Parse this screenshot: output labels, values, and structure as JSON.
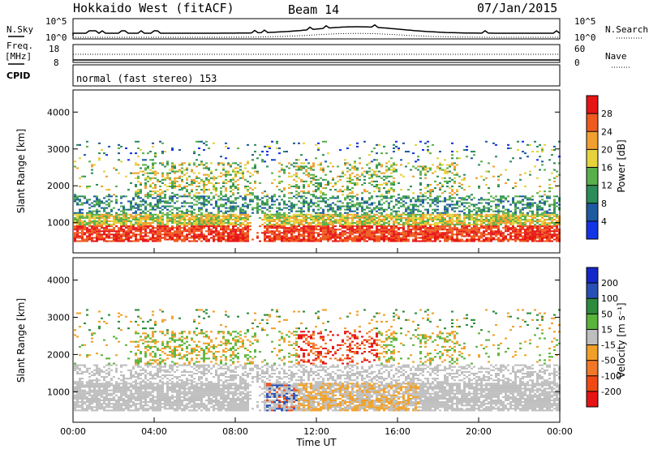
{
  "header": {
    "title": "Hokkaido West (fitACF)",
    "beam": "Beam 14",
    "date": "07/Jan/2015"
  },
  "top_panels": {
    "nsky_label": "N.Sky",
    "nsearch_label": "N.Search",
    "freq_label_1": "Freq.",
    "freq_label_2": "[MHz]",
    "nave_label": "Nave",
    "cpid_label": "CPID",
    "cpid_text": "normal (fast stereo) 153",
    "noise_left_ticks": [
      "10^5",
      "10^0"
    ],
    "noise_right_ticks": [
      "10^5",
      "10^0"
    ],
    "freq_ticks": [
      "18",
      "8"
    ],
    "nave_ticks": [
      "60",
      "0"
    ]
  },
  "chart_data": [
    {
      "type": "heatmap",
      "name": "Power",
      "ylabel": "Slant Range [km]",
      "xlabel": "",
      "y_ticks": [
        "1000",
        "2000",
        "3000",
        "4000"
      ],
      "x_ticks": [],
      "ylim": [
        180,
        4600
      ],
      "xlim_hours": [
        0,
        24
      ],
      "colorbar": {
        "label": "Power [dB]",
        "ticks": [
          "4",
          "8",
          "12",
          "16",
          "20",
          "24",
          "28"
        ],
        "colors": [
          "#1434e6",
          "#1e5aa0",
          "#2c8c5a",
          "#58b04a",
          "#e6d23c",
          "#f0a030",
          "#ef5a1e",
          "#e61414"
        ]
      },
      "regions_description": "echo bands: ground scatter 600-1200 km all day; ionospheric echoes 1200-3000 km"
    },
    {
      "type": "heatmap",
      "name": "Velocity",
      "ylabel": "Slant Range [km]",
      "xlabel": "Time UT",
      "y_ticks": [
        "1000",
        "2000",
        "3000",
        "4000"
      ],
      "x_ticks": [
        "00:00",
        "04:00",
        "08:00",
        "12:00",
        "16:00",
        "20:00",
        "00:00"
      ],
      "ylim": [
        180,
        4600
      ],
      "xlim_hours": [
        0,
        24
      ],
      "colorbar": {
        "label": "Velocity [m s⁻¹]",
        "ticks": [
          "200",
          "100",
          "50",
          "15",
          "-15",
          "-50",
          "-100",
          "-200"
        ],
        "colors": [
          "#1428c8",
          "#2850b4",
          "#2c8c3c",
          "#5ab43c",
          "#bebebe",
          "#f0a028",
          "#f07828",
          "#ef4a14",
          "#e61414"
        ]
      }
    }
  ]
}
